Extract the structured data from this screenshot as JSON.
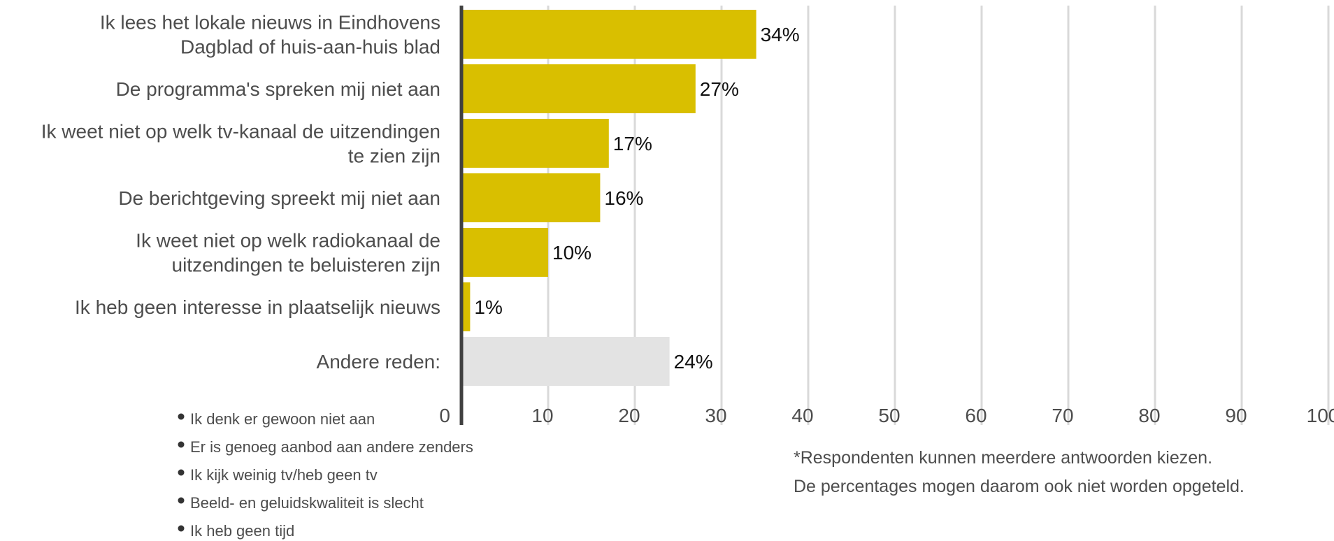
{
  "chart_data": {
    "type": "bar",
    "orientation": "horizontal",
    "categories": [
      [
        "Ik lees het lokale nieuws in Eindhovens",
        "Dagblad of huis-aan-huis blad"
      ],
      [
        "De programma's spreken mij niet aan"
      ],
      [
        "Ik weet niet op welk tv-kanaal de uitzendingen",
        "te zien zijn"
      ],
      [
        "De berichtgeving spreekt mij niet aan"
      ],
      [
        "Ik weet niet op welk radiokanaal de",
        "uitzendingen te beluisteren zijn"
      ],
      [
        "Ik heb geen interesse in plaatselijk nieuws"
      ],
      [
        "Andere reden:"
      ]
    ],
    "values": [
      34,
      27,
      17,
      16,
      10,
      1,
      24
    ],
    "value_labels": [
      "34%",
      "27%",
      "17%",
      "16%",
      "10%",
      "1%",
      "24%"
    ],
    "bar_colors": [
      "#d9bf00",
      "#d9bf00",
      "#d9bf00",
      "#d9bf00",
      "#d9bf00",
      "#d9bf00",
      "#e3e3e3"
    ],
    "xlim": [
      0,
      100
    ],
    "xticks": [
      0,
      10,
      20,
      30,
      40,
      50,
      60,
      70,
      80,
      90,
      100
    ],
    "grid": true,
    "grid_color": "#d9d9d9",
    "axis_color": "#404040",
    "title": "",
    "xlabel": "",
    "ylabel": ""
  },
  "other_reasons": [
    "Ik denk er gewoon niet aan",
    "Er is genoeg aanbod aan andere zenders",
    "Ik kijk weinig tv/heb geen tv",
    "Beeld- en geluidskwaliteit is slecht",
    "Ik heb geen tijd"
  ],
  "footnote": [
    "*Respondenten kunnen meerdere antwoorden kiezen.",
    "De percentages mogen daarom ook niet worden opgeteld."
  ]
}
